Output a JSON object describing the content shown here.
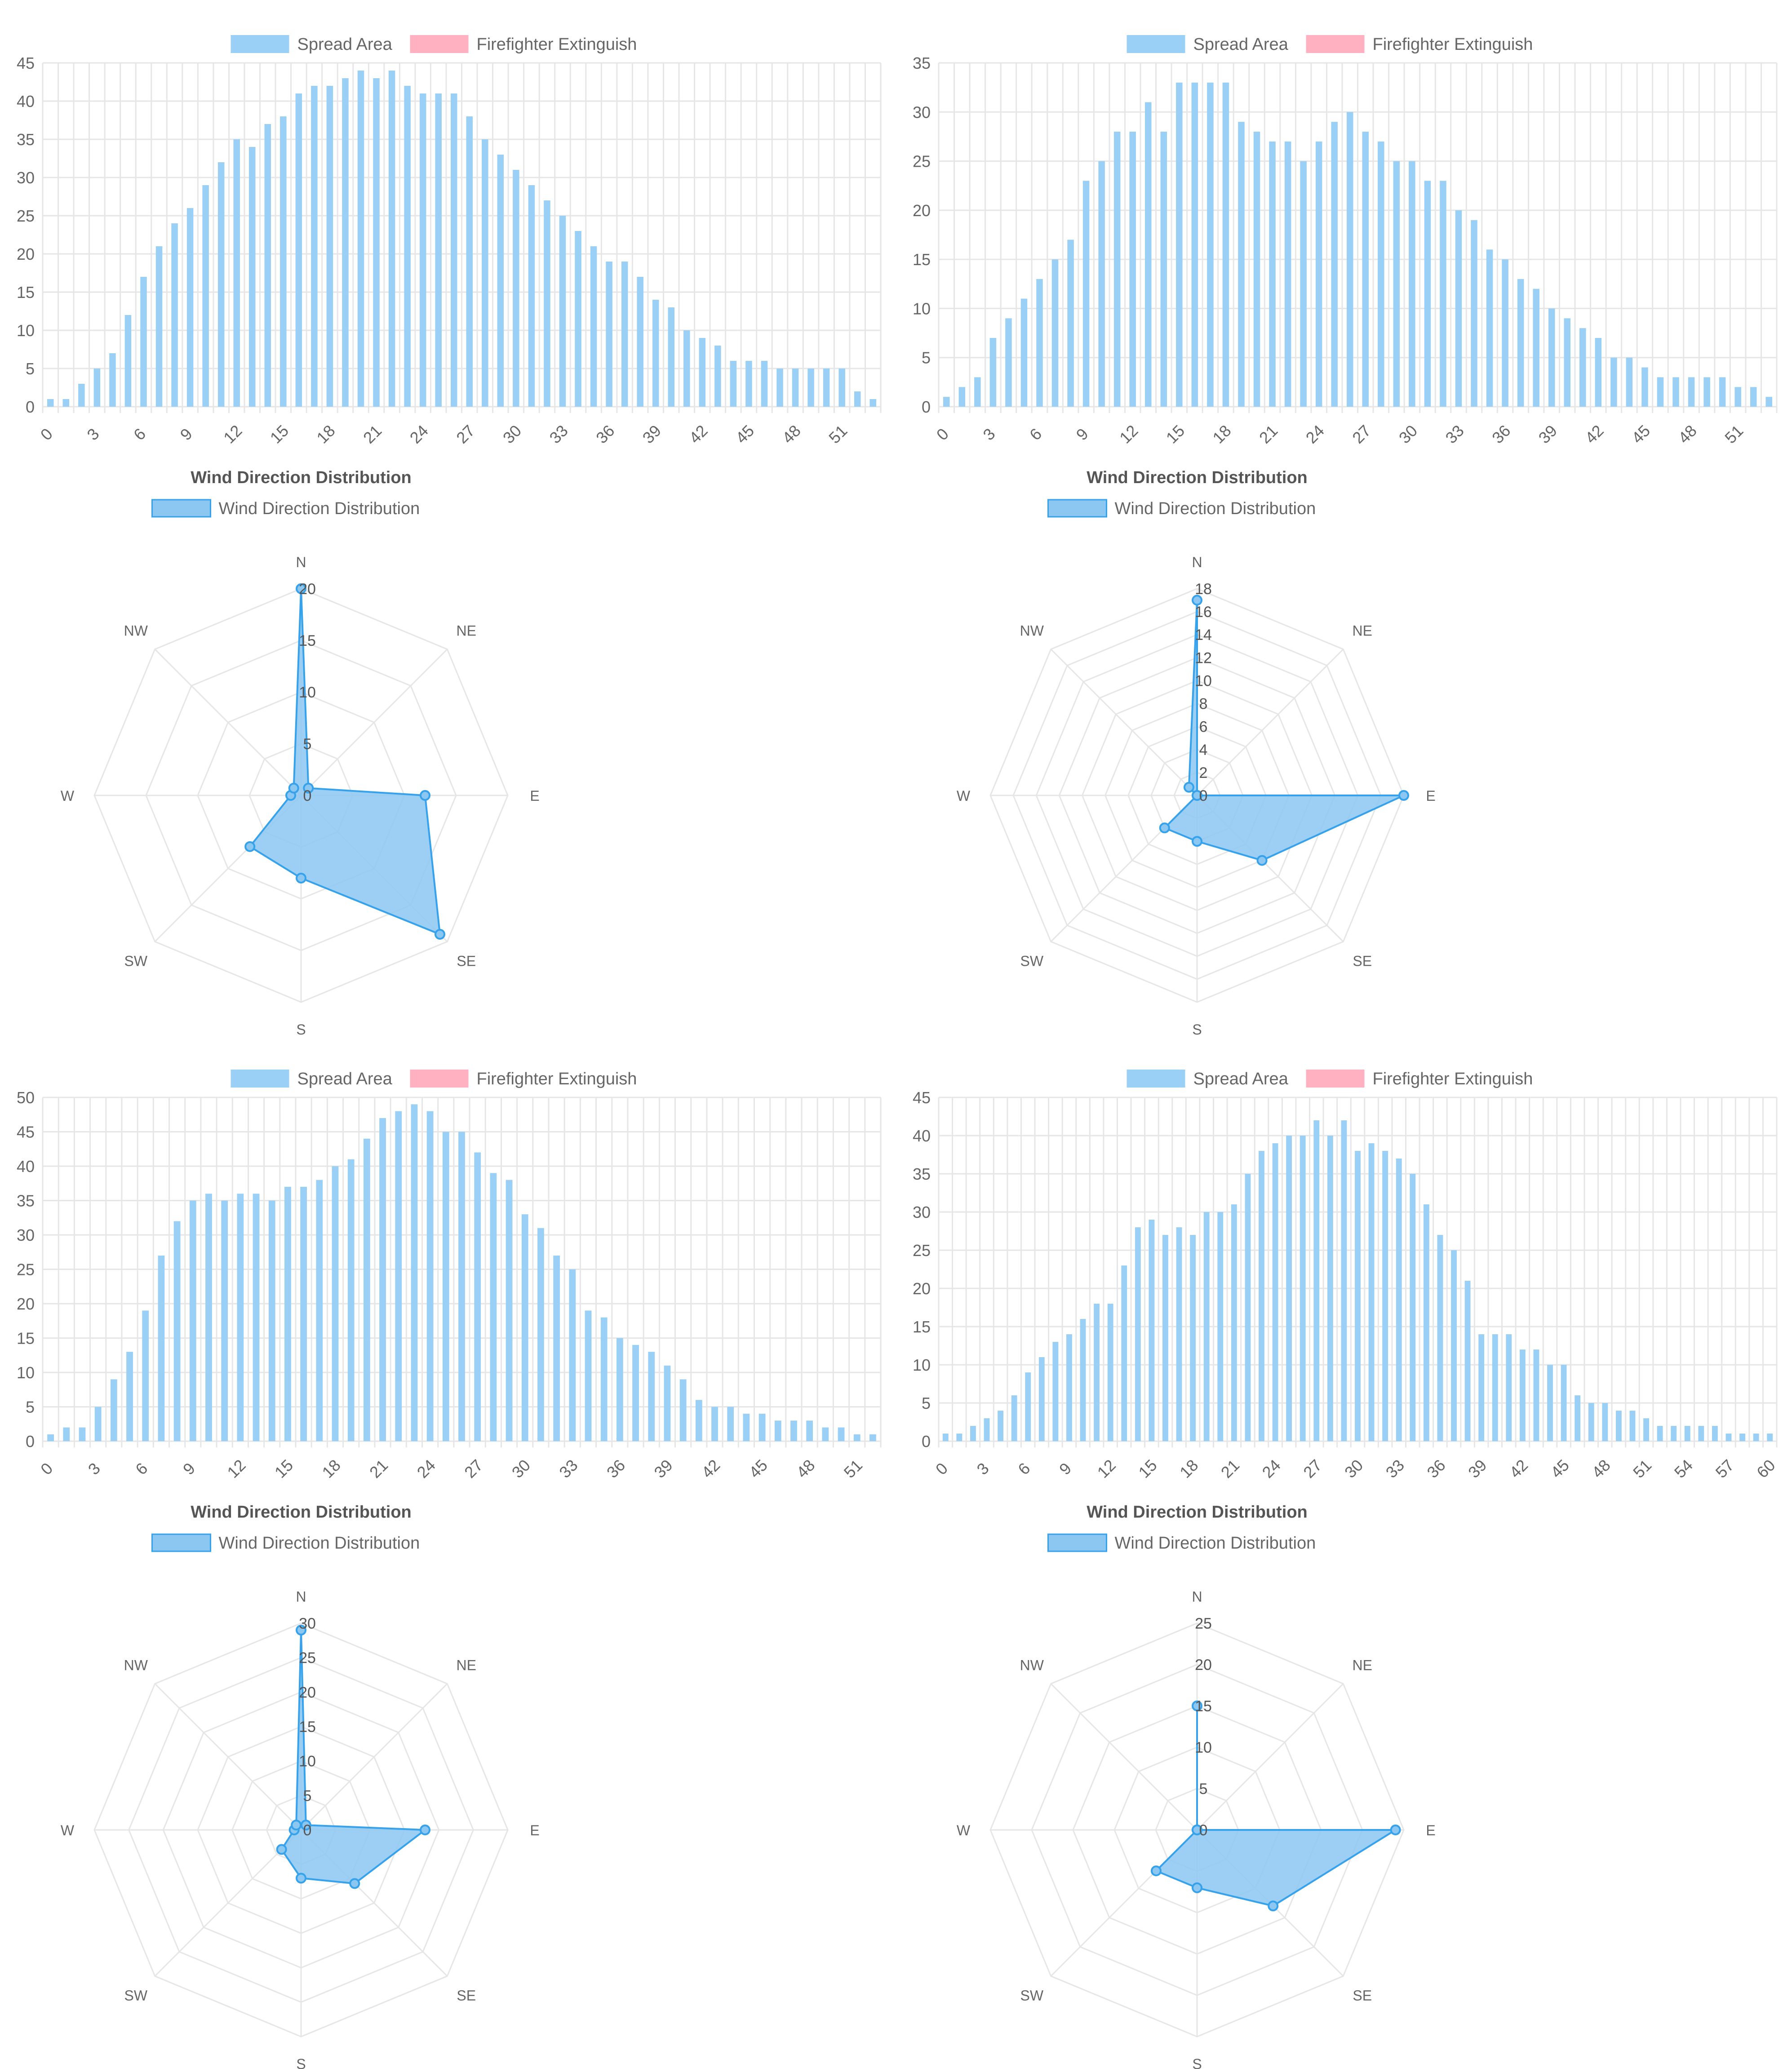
{
  "colors": {
    "spread_area": "#9ad0f5",
    "firefighter_extinguish": "#ffb1c1",
    "radar_fill": "#8cc7f2",
    "radar_line": "#36a2eb",
    "grid": "#e6e6e6",
    "tick_text": "#666666",
    "title_text": "#555555"
  },
  "chart_data": [
    {
      "type": "bar",
      "legend": [
        "Spread Area",
        "Firefighter Extinguish"
      ],
      "series": [
        {
          "name": "Spread Area",
          "values": [
            1,
            1,
            3,
            5,
            7,
            12,
            17,
            21,
            24,
            26,
            29,
            32,
            35,
            34,
            37,
            38,
            41,
            42,
            42,
            43,
            44,
            43,
            44,
            42,
            41,
            41,
            41,
            38,
            35,
            33,
            31,
            29,
            27,
            25,
            23,
            21,
            19,
            19,
            17,
            14,
            13,
            10,
            9,
            8,
            6,
            6,
            6,
            5,
            5,
            5,
            5,
            5,
            2,
            1
          ]
        },
        {
          "name": "Firefighter Extinguish",
          "values": []
        }
      ],
      "x_tick_labels": [
        "0",
        "3",
        "6",
        "9",
        "12",
        "15",
        "18",
        "21",
        "24",
        "27",
        "30",
        "33",
        "36",
        "39",
        "42",
        "45",
        "48",
        "51"
      ],
      "ylim": [
        0,
        45
      ],
      "y_step": 5,
      "legend_position": "top",
      "grid": true
    },
    {
      "type": "radar",
      "title": "Wind Direction Distribution",
      "legend": [
        "Wind Direction Distribution"
      ],
      "categories": [
        "N",
        "NE",
        "E",
        "SE",
        "S",
        "SW",
        "W",
        "NW"
      ],
      "series": [
        {
          "name": "Wind Direction Distribution",
          "values": [
            20,
            1,
            12,
            19,
            8,
            7,
            1,
            1
          ]
        }
      ],
      "rmax": 20,
      "r_step": 5,
      "legend_position": "top"
    },
    {
      "type": "bar",
      "legend": [
        "Spread Area",
        "Firefighter Extinguish"
      ],
      "series": [
        {
          "name": "Spread Area",
          "values": [
            1,
            2,
            3,
            7,
            9,
            11,
            13,
            15,
            17,
            23,
            25,
            28,
            28,
            31,
            28,
            33,
            33,
            33,
            33,
            29,
            28,
            27,
            27,
            25,
            27,
            29,
            30,
            28,
            27,
            25,
            25,
            23,
            23,
            20,
            19,
            16,
            15,
            13,
            12,
            10,
            9,
            8,
            7,
            5,
            5,
            4,
            3,
            3,
            3,
            3,
            3,
            2,
            2,
            1
          ]
        },
        {
          "name": "Firefighter Extinguish",
          "values": []
        }
      ],
      "x_tick_labels": [
        "0",
        "3",
        "6",
        "9",
        "12",
        "15",
        "18",
        "21",
        "24",
        "27",
        "30",
        "33",
        "36",
        "39",
        "42",
        "45",
        "48",
        "51"
      ],
      "ylim": [
        0,
        35
      ],
      "y_step": 5,
      "legend_position": "top",
      "grid": true
    },
    {
      "type": "radar",
      "title": "Wind Direction Distribution",
      "legend": [
        "Wind Direction Distribution"
      ],
      "categories": [
        "N",
        "NE",
        "E",
        "SE",
        "S",
        "SW",
        "W",
        "NW"
      ],
      "series": [
        {
          "name": "Wind Direction Distribution",
          "values": [
            17,
            0,
            18,
            8,
            4,
            4,
            0,
            1
          ]
        }
      ],
      "rmax": 18,
      "r_step": 2,
      "legend_position": "top"
    },
    {
      "type": "bar",
      "legend": [
        "Spread Area",
        "Firefighter Extinguish"
      ],
      "series": [
        {
          "name": "Spread Area",
          "values": [
            1,
            2,
            2,
            5,
            9,
            13,
            19,
            27,
            32,
            35,
            36,
            35,
            36,
            36,
            35,
            37,
            37,
            38,
            40,
            41,
            44,
            47,
            48,
            49,
            48,
            45,
            45,
            42,
            39,
            38,
            33,
            31,
            27,
            25,
            19,
            18,
            15,
            14,
            13,
            11,
            9,
            6,
            5,
            5,
            4,
            4,
            3,
            3,
            3,
            2,
            2,
            1,
            1
          ]
        },
        {
          "name": "Firefighter Extinguish",
          "values": []
        }
      ],
      "x_tick_labels": [
        "0",
        "3",
        "6",
        "9",
        "12",
        "15",
        "18",
        "21",
        "24",
        "27",
        "30",
        "33",
        "36",
        "39",
        "42",
        "45",
        "48",
        "51"
      ],
      "ylim": [
        0,
        50
      ],
      "y_step": 5,
      "legend_position": "top",
      "grid": true
    },
    {
      "type": "radar",
      "title": "Wind Direction Distribution",
      "legend": [
        "Wind Direction Distribution"
      ],
      "categories": [
        "N",
        "NE",
        "E",
        "SE",
        "S",
        "SW",
        "W",
        "NW"
      ],
      "series": [
        {
          "name": "Wind Direction Distribution",
          "values": [
            29,
            1,
            18,
            11,
            7,
            4,
            1,
            1
          ]
        }
      ],
      "rmax": 30,
      "r_step": 5,
      "legend_position": "top"
    },
    {
      "type": "bar",
      "legend": [
        "Spread Area",
        "Firefighter Extinguish"
      ],
      "series": [
        {
          "name": "Spread Area",
          "values": [
            1,
            1,
            2,
            3,
            4,
            6,
            9,
            11,
            13,
            14,
            16,
            18,
            18,
            23,
            28,
            29,
            27,
            28,
            27,
            30,
            30,
            31,
            35,
            38,
            39,
            40,
            40,
            42,
            40,
            42,
            38,
            39,
            38,
            37,
            35,
            31,
            27,
            25,
            21,
            14,
            14,
            14,
            12,
            12,
            10,
            10,
            6,
            5,
            5,
            4,
            4,
            3,
            2,
            2,
            2,
            2,
            2,
            1,
            1,
            1,
            1
          ]
        },
        {
          "name": "Firefighter Extinguish",
          "values": []
        }
      ],
      "x_tick_labels": [
        "0",
        "3",
        "6",
        "9",
        "12",
        "15",
        "18",
        "21",
        "24",
        "27",
        "30",
        "33",
        "36",
        "39",
        "42",
        "45",
        "48",
        "51",
        "54",
        "57",
        "60"
      ],
      "ylim": [
        0,
        45
      ],
      "y_step": 5,
      "legend_position": "top",
      "grid": true
    },
    {
      "type": "radar",
      "title": "Wind Direction Distribution",
      "legend": [
        "Wind Direction Distribution"
      ],
      "categories": [
        "N",
        "NE",
        "E",
        "SE",
        "S",
        "SW",
        "W",
        "NW"
      ],
      "series": [
        {
          "name": "Wind Direction Distribution",
          "values": [
            15,
            0,
            24,
            13,
            7,
            7,
            0,
            0
          ]
        }
      ],
      "rmax": 25,
      "r_step": 5,
      "legend_position": "top"
    }
  ]
}
